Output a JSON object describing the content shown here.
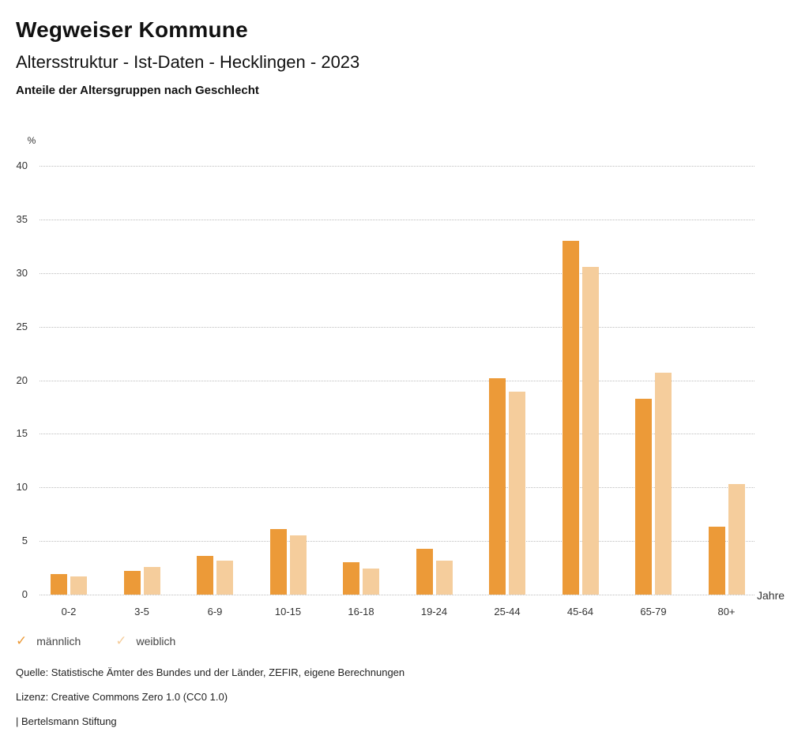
{
  "header": {
    "title": "Wegweiser Kommune",
    "subtitle": "Altersstruktur - Ist-Daten - Hecklingen - 2023",
    "heading": "Anteile der Altersgruppen nach Geschlecht"
  },
  "chart_data": {
    "type": "bar",
    "title": "Anteile der Altersgruppen nach Geschlecht",
    "unit_label": "%",
    "x_axis_label": "Jahre",
    "categories": [
      "0-2",
      "3-5",
      "6-9",
      "10-15",
      "16-18",
      "19-24",
      "25-44",
      "45-64",
      "65-79",
      "80+"
    ],
    "series": [
      {
        "name": "männlich",
        "color": "#EC9A38",
        "values": [
          1.9,
          2.2,
          3.6,
          6.1,
          3.0,
          4.3,
          20.2,
          33.0,
          18.3,
          6.3
        ]
      },
      {
        "name": "weiblich",
        "color": "#F5CD9C",
        "values": [
          1.7,
          2.6,
          3.2,
          5.5,
          2.4,
          3.2,
          18.9,
          30.6,
          20.7,
          10.3
        ]
      }
    ],
    "ylim": [
      0,
      40
    ],
    "ytick_step": 5,
    "yticks": [
      0,
      5,
      10,
      15,
      20,
      25,
      30,
      35,
      40
    ],
    "grid": "horizontal-dotted",
    "legend_position": "bottom-left"
  },
  "legend": {
    "check_icon": "✓",
    "items": [
      {
        "label": "männlich",
        "color": "#EC9A38"
      },
      {
        "label": "weiblich",
        "color": "#F5CD9C"
      }
    ]
  },
  "footer": {
    "source": "Quelle: Statistische Ämter des Bundes und der Länder, ZEFIR, eigene Berechnungen",
    "license": "Lizenz: Creative Commons Zero 1.0 (CC0 1.0)",
    "attribution": "| Bertelsmann Stiftung"
  }
}
